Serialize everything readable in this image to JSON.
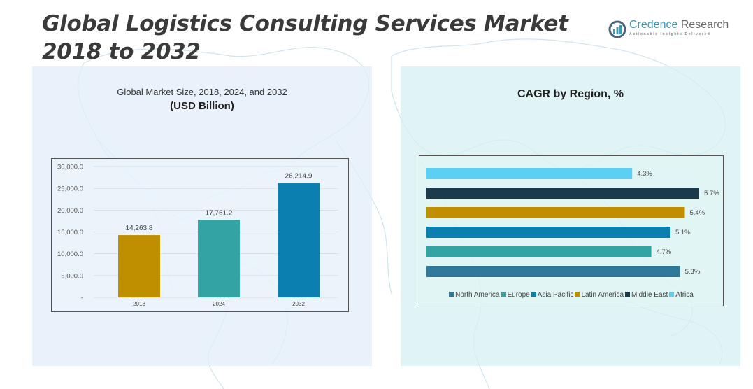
{
  "header": {
    "title": "Global Logistics Consulting Services Market 2018 to 2032",
    "logo": {
      "icon": "bar-chart-circle-icon",
      "brand_primary": "Credence",
      "brand_secondary": "Research",
      "tagline": "Actionable Insights Delivered"
    }
  },
  "left_panel": {
    "title": "Global Market Size, 2018, 2024, and 2032",
    "subtitle": "(USD Billion)"
  },
  "right_panel": {
    "title": "CAGR by Region, %"
  },
  "chart_data": [
    {
      "type": "bar",
      "title": "Global Market Size, 2018, 2024, and 2032",
      "subtitle": "(USD Billion)",
      "categories": [
        "2018",
        "2024",
        "2032"
      ],
      "values": [
        14263.8,
        17761.2,
        26214.9
      ],
      "value_labels": [
        "14,263.8",
        "17,761.2",
        "26,214.9"
      ],
      "colors": [
        "#bf8f00",
        "#33a3a3",
        "#0a7fb0"
      ],
      "xlabel": "",
      "ylabel": "",
      "ylim": [
        0,
        30000
      ],
      "yticks": [
        0,
        5000,
        10000,
        15000,
        20000,
        25000,
        30000
      ],
      "ytick_labels": [
        "-",
        "5,000.0",
        "10,000.0",
        "15,000.0",
        "20,000.0",
        "25,000.0",
        "30,000.0"
      ],
      "grid": true,
      "legend": "none"
    },
    {
      "type": "bar",
      "orientation": "horizontal",
      "title": "CAGR by Region, %",
      "categories": [
        "North America",
        "Europe",
        "Asia Pacific",
        "Latin America",
        "Middle East",
        "Africa"
      ],
      "values": [
        5.3,
        4.7,
        5.1,
        5.4,
        5.7,
        4.3
      ],
      "value_labels": [
        "5.3%",
        "4.7%",
        "5.1%",
        "5.4%",
        "5.7%",
        "4.3%"
      ],
      "colors": [
        "#31799b",
        "#33a3a3",
        "#0a7fb0",
        "#bf8f00",
        "#1b3a4b",
        "#5bd0f4"
      ],
      "unit": "%",
      "xlim": [
        0,
        5.7
      ],
      "grid": false,
      "legend": "bottom"
    }
  ]
}
